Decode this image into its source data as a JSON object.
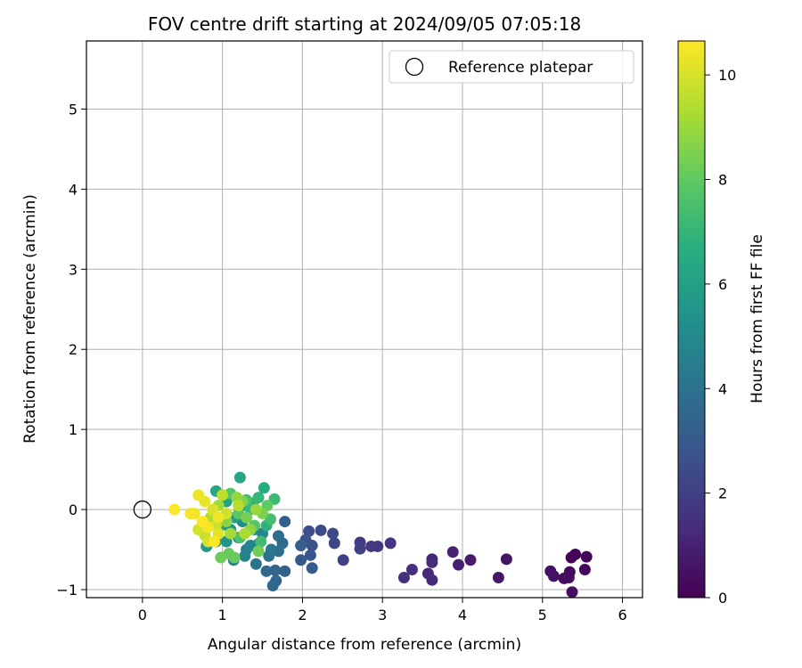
{
  "chart_data": {
    "type": "scatter",
    "title": "FOV centre drift starting at 2024/09/05 07:05:18",
    "xlabel": "Angular distance from reference (arcmin)",
    "ylabel": "Rotation from reference (arcmin)",
    "xlim": [
      -0.7,
      6.25
    ],
    "ylim": [
      -1.1,
      5.85
    ],
    "xticks": [
      0,
      1,
      2,
      3,
      4,
      5,
      6
    ],
    "yticks": [
      -1,
      0,
      1,
      2,
      3,
      4,
      5
    ],
    "grid": true,
    "legend": {
      "position": "top-right",
      "entries": [
        "Reference platepar"
      ]
    },
    "reference_point": {
      "x": 0,
      "y": 0
    },
    "colorbar": {
      "label": "Hours from first FF file",
      "min": 0,
      "max": 10.65,
      "ticks": [
        0,
        2,
        4,
        6,
        8,
        10
      ],
      "colormap": "viridis"
    },
    "points": [
      [
        5.36,
        -0.6,
        0.05
      ],
      [
        5.41,
        -0.56,
        0.1
      ],
      [
        5.55,
        -0.59,
        0.15
      ],
      [
        5.53,
        -0.75,
        0.2
      ],
      [
        5.34,
        -0.78,
        0.25
      ],
      [
        5.27,
        -0.86,
        0.3
      ],
      [
        5.33,
        -0.85,
        0.35
      ],
      [
        5.37,
        -1.03,
        0.4
      ],
      [
        5.1,
        -0.77,
        0.45
      ],
      [
        5.14,
        -0.83,
        0.5
      ],
      [
        4.55,
        -0.62,
        0.6
      ],
      [
        4.45,
        -0.85,
        0.7
      ],
      [
        4.1,
        -0.63,
        0.8
      ],
      [
        3.95,
        -0.69,
        0.9
      ],
      [
        3.88,
        -0.53,
        1.0
      ],
      [
        3.62,
        -0.62,
        1.1
      ],
      [
        3.57,
        -0.8,
        1.2
      ],
      [
        3.62,
        -0.88,
        1.25
      ],
      [
        3.62,
        -0.66,
        1.3
      ],
      [
        3.37,
        -0.75,
        1.4
      ],
      [
        3.27,
        -0.85,
        1.5
      ],
      [
        3.1,
        -0.42,
        1.6
      ],
      [
        2.94,
        -0.46,
        1.7
      ],
      [
        2.86,
        -0.46,
        1.8
      ],
      [
        2.72,
        -0.41,
        1.9
      ],
      [
        2.72,
        -0.49,
        2.0
      ],
      [
        2.51,
        -0.63,
        2.1
      ],
      [
        2.4,
        -0.42,
        2.2
      ],
      [
        2.38,
        -0.3,
        2.3
      ],
      [
        2.23,
        -0.26,
        2.4
      ],
      [
        2.08,
        -0.27,
        2.5
      ],
      [
        2.12,
        -0.45,
        2.6
      ],
      [
        2.04,
        -0.38,
        2.7
      ],
      [
        2.1,
        -0.57,
        2.8
      ],
      [
        1.98,
        -0.63,
        2.9
      ],
      [
        2.12,
        -0.73,
        3.0
      ],
      [
        1.98,
        -0.45,
        3.1
      ],
      [
        1.78,
        -0.15,
        3.2
      ],
      [
        1.78,
        -0.77,
        3.3
      ],
      [
        1.66,
        -0.76,
        3.4
      ],
      [
        1.67,
        -0.89,
        3.5
      ],
      [
        1.63,
        -0.95,
        3.55
      ],
      [
        1.55,
        -0.77,
        3.6
      ],
      [
        1.75,
        -0.42,
        3.7
      ],
      [
        1.7,
        -0.33,
        3.8
      ],
      [
        1.7,
        -0.52,
        3.9
      ],
      [
        1.58,
        -0.58,
        4.0
      ],
      [
        1.42,
        -0.68,
        4.1
      ],
      [
        1.61,
        -0.5,
        4.2
      ],
      [
        1.45,
        -0.43,
        4.3
      ],
      [
        1.3,
        -0.5,
        4.4
      ],
      [
        1.2,
        -0.35,
        4.5
      ],
      [
        1.14,
        -0.63,
        4.6
      ],
      [
        1.28,
        -0.58,
        4.7
      ],
      [
        1.35,
        -0.45,
        4.8
      ],
      [
        1.5,
        -0.3,
        4.9
      ],
      [
        1.4,
        -0.25,
        5.0
      ],
      [
        1.25,
        -0.15,
        5.2
      ],
      [
        1.1,
        -0.25,
        5.4
      ],
      [
        1.05,
        -0.4,
        5.5
      ],
      [
        0.92,
        -0.4,
        5.6
      ],
      [
        0.8,
        -0.46,
        5.7
      ],
      [
        0.98,
        -0.2,
        5.8
      ],
      [
        1.15,
        -0.1,
        5.9
      ],
      [
        1.25,
        0.05,
        6.0
      ],
      [
        1.05,
        0.1,
        6.1
      ],
      [
        0.92,
        0.23,
        6.2
      ],
      [
        1.22,
        0.4,
        6.3
      ],
      [
        1.52,
        0.27,
        6.5
      ],
      [
        1.38,
        0.08,
        6.7
      ],
      [
        1.55,
        -0.2,
        6.8
      ],
      [
        1.45,
        0.15,
        7.0
      ],
      [
        1.35,
        0.0,
        7.1
      ],
      [
        1.65,
        0.13,
        7.2
      ],
      [
        1.48,
        -0.4,
        7.3
      ],
      [
        1.6,
        -0.12,
        7.4
      ],
      [
        1.3,
        0.12,
        7.5
      ],
      [
        1.22,
        -0.35,
        7.6
      ],
      [
        1.1,
        0.2,
        7.7
      ],
      [
        1.4,
        -0.2,
        7.8
      ],
      [
        1.2,
        -0.05,
        7.9
      ],
      [
        1.56,
        0.05,
        8.0
      ],
      [
        1.08,
        -0.55,
        8.1
      ],
      [
        1.15,
        -0.6,
        8.15
      ],
      [
        0.98,
        -0.6,
        8.2
      ],
      [
        1.45,
        -0.52,
        8.3
      ],
      [
        1.3,
        -0.1,
        8.4
      ],
      [
        1.5,
        -0.05,
        8.5
      ],
      [
        1.25,
        0.1,
        8.6
      ],
      [
        1.05,
        -0.15,
        8.7
      ],
      [
        1.35,
        -0.25,
        8.8
      ],
      [
        1.18,
        0.15,
        8.9
      ],
      [
        1.42,
        0.0,
        9.0
      ],
      [
        0.95,
        0.05,
        9.1
      ],
      [
        1.1,
        -0.3,
        9.2
      ],
      [
        1.28,
        -0.3,
        9.3
      ],
      [
        0.85,
        -0.1,
        9.4
      ],
      [
        1.2,
        0.05,
        9.5
      ],
      [
        1.0,
        0.18,
        9.6
      ],
      [
        0.78,
        -0.32,
        9.7
      ],
      [
        0.92,
        -0.2,
        9.8
      ],
      [
        1.05,
        -0.05,
        9.9
      ],
      [
        0.7,
        -0.25,
        10.0
      ],
      [
        0.82,
        -0.4,
        10.05
      ],
      [
        0.88,
        0.0,
        10.1
      ],
      [
        0.95,
        -0.3,
        10.2
      ],
      [
        0.78,
        0.1,
        10.3
      ],
      [
        0.7,
        0.18,
        10.35
      ],
      [
        0.65,
        -0.05,
        10.4
      ],
      [
        0.95,
        -0.1,
        10.45
      ],
      [
        0.82,
        -0.22,
        10.5
      ],
      [
        0.6,
        -0.05,
        10.55
      ],
      [
        0.4,
        0.0,
        10.6
      ],
      [
        0.9,
        -0.4,
        10.62
      ],
      [
        0.75,
        -0.15,
        10.65
      ]
    ]
  }
}
